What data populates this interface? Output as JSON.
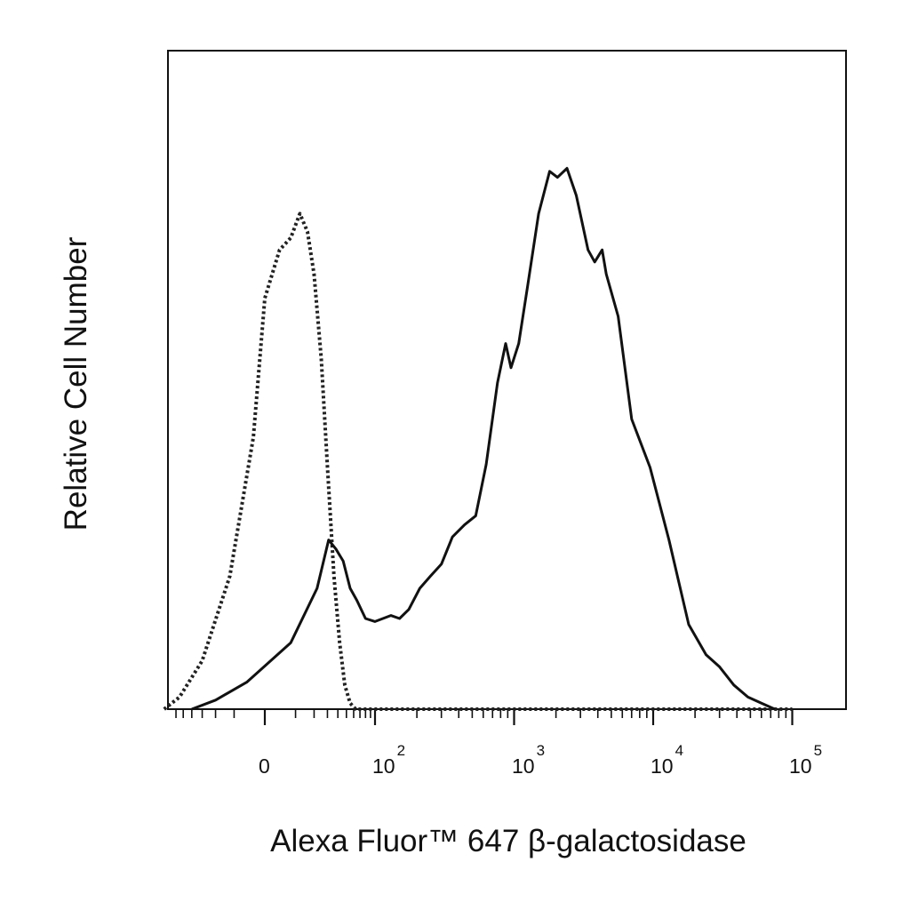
{
  "chart_data": {
    "type": "line",
    "xlabel": "Alexa Fluor™ 647 β-galactosidase",
    "ylabel": "Relative Cell Number",
    "x_scale": "biexponential",
    "x_ticks": [
      {
        "base": "0",
        "exp": ""
      },
      {
        "base": "10",
        "exp": "2"
      },
      {
        "base": "10",
        "exp": "3"
      },
      {
        "base": "10",
        "exp": "4"
      },
      {
        "base": "10",
        "exp": "5"
      }
    ],
    "x_tick_values": [
      0,
      100,
      1000,
      10000,
      100000
    ],
    "y_range": [
      0,
      100
    ],
    "grid": false,
    "legend": "none",
    "series": [
      {
        "style": "dotted",
        "color": "#222222",
        "points": [
          [
            -80,
            0
          ],
          [
            -55,
            2
          ],
          [
            -30,
            8
          ],
          [
            -12,
            22
          ],
          [
            -3,
            45
          ],
          [
            0,
            68
          ],
          [
            4,
            76
          ],
          [
            8,
            78
          ],
          [
            12,
            82
          ],
          [
            16,
            79
          ],
          [
            20,
            72
          ],
          [
            25,
            58
          ],
          [
            30,
            40
          ],
          [
            36,
            22
          ],
          [
            42,
            11
          ],
          [
            48,
            4
          ],
          [
            55,
            1
          ],
          [
            63,
            0
          ],
          [
            75,
            0
          ],
          [
            100,
            0
          ],
          [
            1000,
            0
          ],
          [
            10000,
            0
          ],
          [
            100000,
            0
          ]
        ]
      },
      {
        "style": "solid",
        "color": "#111111",
        "points": [
          [
            -40,
            0
          ],
          [
            -20,
            1.5
          ],
          [
            -5,
            4.5
          ],
          [
            8,
            11
          ],
          [
            22,
            20
          ],
          [
            31,
            28
          ],
          [
            38,
            26.5
          ],
          [
            46,
            24.5
          ],
          [
            55,
            20
          ],
          [
            65,
            18
          ],
          [
            80,
            15
          ],
          [
            100,
            14.5
          ],
          [
            130,
            15.5
          ],
          [
            150,
            15
          ],
          [
            175,
            16.5
          ],
          [
            210,
            20
          ],
          [
            250,
            22
          ],
          [
            300,
            24
          ],
          [
            360,
            28.5
          ],
          [
            440,
            30.5
          ],
          [
            530,
            32
          ],
          [
            630,
            40.5
          ],
          [
            760,
            54
          ],
          [
            870,
            60.5
          ],
          [
            950,
            56.5
          ],
          [
            1080,
            60.5
          ],
          [
            1250,
            70
          ],
          [
            1500,
            82
          ],
          [
            1800,
            89
          ],
          [
            2050,
            88
          ],
          [
            2400,
            89.5
          ],
          [
            2800,
            85
          ],
          [
            3400,
            76
          ],
          [
            3800,
            74
          ],
          [
            4300,
            76
          ],
          [
            4600,
            72
          ],
          [
            5600,
            65
          ],
          [
            7000,
            48
          ],
          [
            9500,
            40
          ],
          [
            13000,
            28
          ],
          [
            18000,
            14
          ],
          [
            24000,
            9
          ],
          [
            30000,
            7
          ],
          [
            38000,
            4
          ],
          [
            48000,
            2
          ],
          [
            60000,
            1
          ],
          [
            75000,
            0
          ]
        ]
      }
    ]
  }
}
